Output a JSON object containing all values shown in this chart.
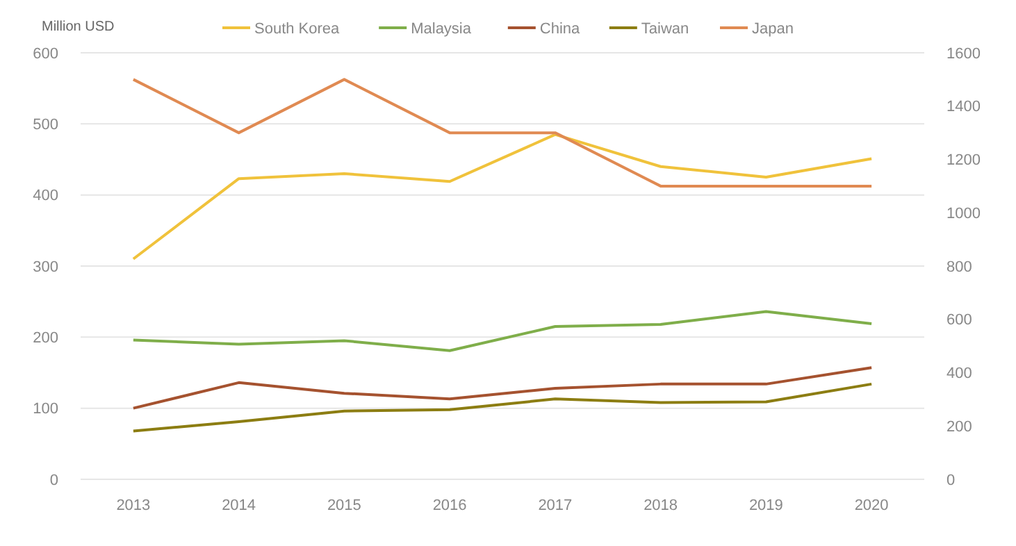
{
  "chart_data": {
    "type": "line",
    "ylabel": "Million USD",
    "categories": [
      "2013",
      "2014",
      "2015",
      "2016",
      "2017",
      "2018",
      "2019",
      "2020"
    ],
    "series": [
      {
        "name": "South Korea",
        "color": "#f0c23b",
        "values": [
          310,
          423,
          430,
          419,
          485,
          440,
          425,
          451
        ]
      },
      {
        "name": "Malaysia",
        "color": "#7fae4a",
        "values": [
          196,
          190,
          195,
          181,
          215,
          218,
          236,
          219
        ]
      },
      {
        "name": "China",
        "color": "#a5522f",
        "values": [
          100,
          136,
          121,
          113,
          128,
          134,
          134,
          157
        ]
      },
      {
        "name": "Taiwan",
        "color": "#8c7d12",
        "values": [
          68,
          81,
          96,
          98,
          113,
          108,
          109,
          134
        ]
      },
      {
        "name": "Japan",
        "color": "#e08a52",
        "axis": "y2",
        "values": [
          1500,
          1300,
          1500,
          1300,
          1300,
          1100,
          1100,
          1100
        ]
      }
    ],
    "ylim": [
      0,
      600
    ],
    "yticks": [
      0,
      100,
      200,
      300,
      400,
      500,
      600
    ],
    "y2lim": [
      0,
      1600
    ],
    "y2ticks": [
      0,
      200,
      400,
      600,
      800,
      1000,
      1200,
      1400,
      1600
    ],
    "grid": "y",
    "legend": "top",
    "marker": "none",
    "line_style": "solid"
  }
}
